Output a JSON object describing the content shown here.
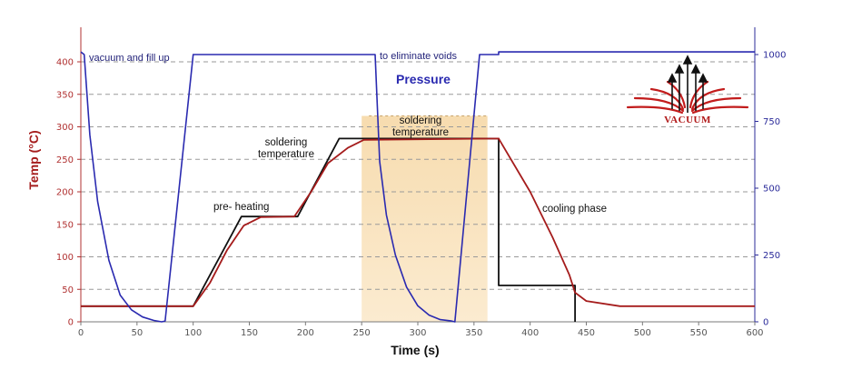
{
  "chart_data": {
    "type": "line",
    "title": "",
    "xlabel": "Time (s)",
    "ylabel": "Temp (°C)",
    "xlim": [
      0,
      600
    ],
    "ylim": [
      0,
      450
    ],
    "y2lim": [
      0,
      1100
    ],
    "x_ticks": [
      0,
      50,
      100,
      150,
      200,
      250,
      300,
      350,
      400,
      450,
      500,
      550,
      600
    ],
    "y_ticks": [
      0,
      50,
      100,
      150,
      200,
      250,
      300,
      350,
      400
    ],
    "y2_ticks": [
      0,
      250,
      500,
      750,
      1000
    ],
    "y2_tick_labels": [
      "0",
      "250",
      "500",
      "750",
      "1000"
    ],
    "grid": "dashed horizontal",
    "shaded_region": {
      "x_start": 250,
      "x_end": 362,
      "color": "#fbe6c2",
      "label": "soldering temperature"
    },
    "series": [
      {
        "name": "",
        "axis": "left",
        "color": "#111111",
        "points": [
          [
            0,
            24
          ],
          [
            100,
            24
          ],
          [
            100,
            24
          ],
          [
            143,
            162
          ],
          [
            193,
            162
          ],
          [
            230,
            282
          ],
          [
            372,
            282
          ],
          [
            372,
            56
          ],
          [
            440,
            56
          ],
          [
            440,
            0
          ]
        ]
      },
      {
        "name": "",
        "axis": "left",
        "color": "#a51c1c",
        "points": [
          [
            0,
            24
          ],
          [
            100,
            24
          ],
          [
            115,
            60
          ],
          [
            130,
            110
          ],
          [
            145,
            148
          ],
          [
            160,
            161
          ],
          [
            190,
            162
          ],
          [
            205,
            200
          ],
          [
            220,
            244
          ],
          [
            238,
            268
          ],
          [
            252,
            280
          ],
          [
            372,
            282
          ],
          [
            400,
            200
          ],
          [
            420,
            130
          ],
          [
            435,
            72
          ],
          [
            440,
            45
          ],
          [
            450,
            32
          ],
          [
            480,
            24
          ],
          [
            600,
            24
          ]
        ]
      },
      {
        "name": "Pressure",
        "axis": "right",
        "color": "#2a2ab0",
        "points": [
          [
            0,
            1010
          ],
          [
            3,
            1000
          ],
          [
            8,
            700
          ],
          [
            15,
            450
          ],
          [
            25,
            230
          ],
          [
            35,
            100
          ],
          [
            45,
            45
          ],
          [
            55,
            18
          ],
          [
            65,
            5
          ],
          [
            72,
            0
          ],
          [
            75,
            3
          ],
          [
            100,
            1000
          ],
          [
            262,
            1000
          ],
          [
            266,
            600
          ],
          [
            272,
            400
          ],
          [
            280,
            250
          ],
          [
            290,
            130
          ],
          [
            300,
            60
          ],
          [
            310,
            25
          ],
          [
            320,
            8
          ],
          [
            330,
            3
          ],
          [
            333,
            0
          ],
          [
            355,
            1000
          ],
          [
            372,
            1000
          ],
          [
            372,
            1010
          ],
          [
            600,
            1010
          ]
        ]
      }
    ],
    "annotations": {
      "vacuum_fill": "vacuum and fill up",
      "eliminate_voids": "to eliminate voids",
      "pressure": "Pressure",
      "soldering_temp_1": "soldering",
      "soldering_temp_2": "temperature",
      "soldering_box_1": "soldering",
      "soldering_box_2": "temperature",
      "preheating": "pre- heating",
      "cooling": "cooling phase"
    },
    "logo_text": "VACUUM",
    "colors": {
      "temp_axis": "#b03030",
      "pressure_axis": "#2b2b9a",
      "shade": "#fbe6c2"
    }
  }
}
